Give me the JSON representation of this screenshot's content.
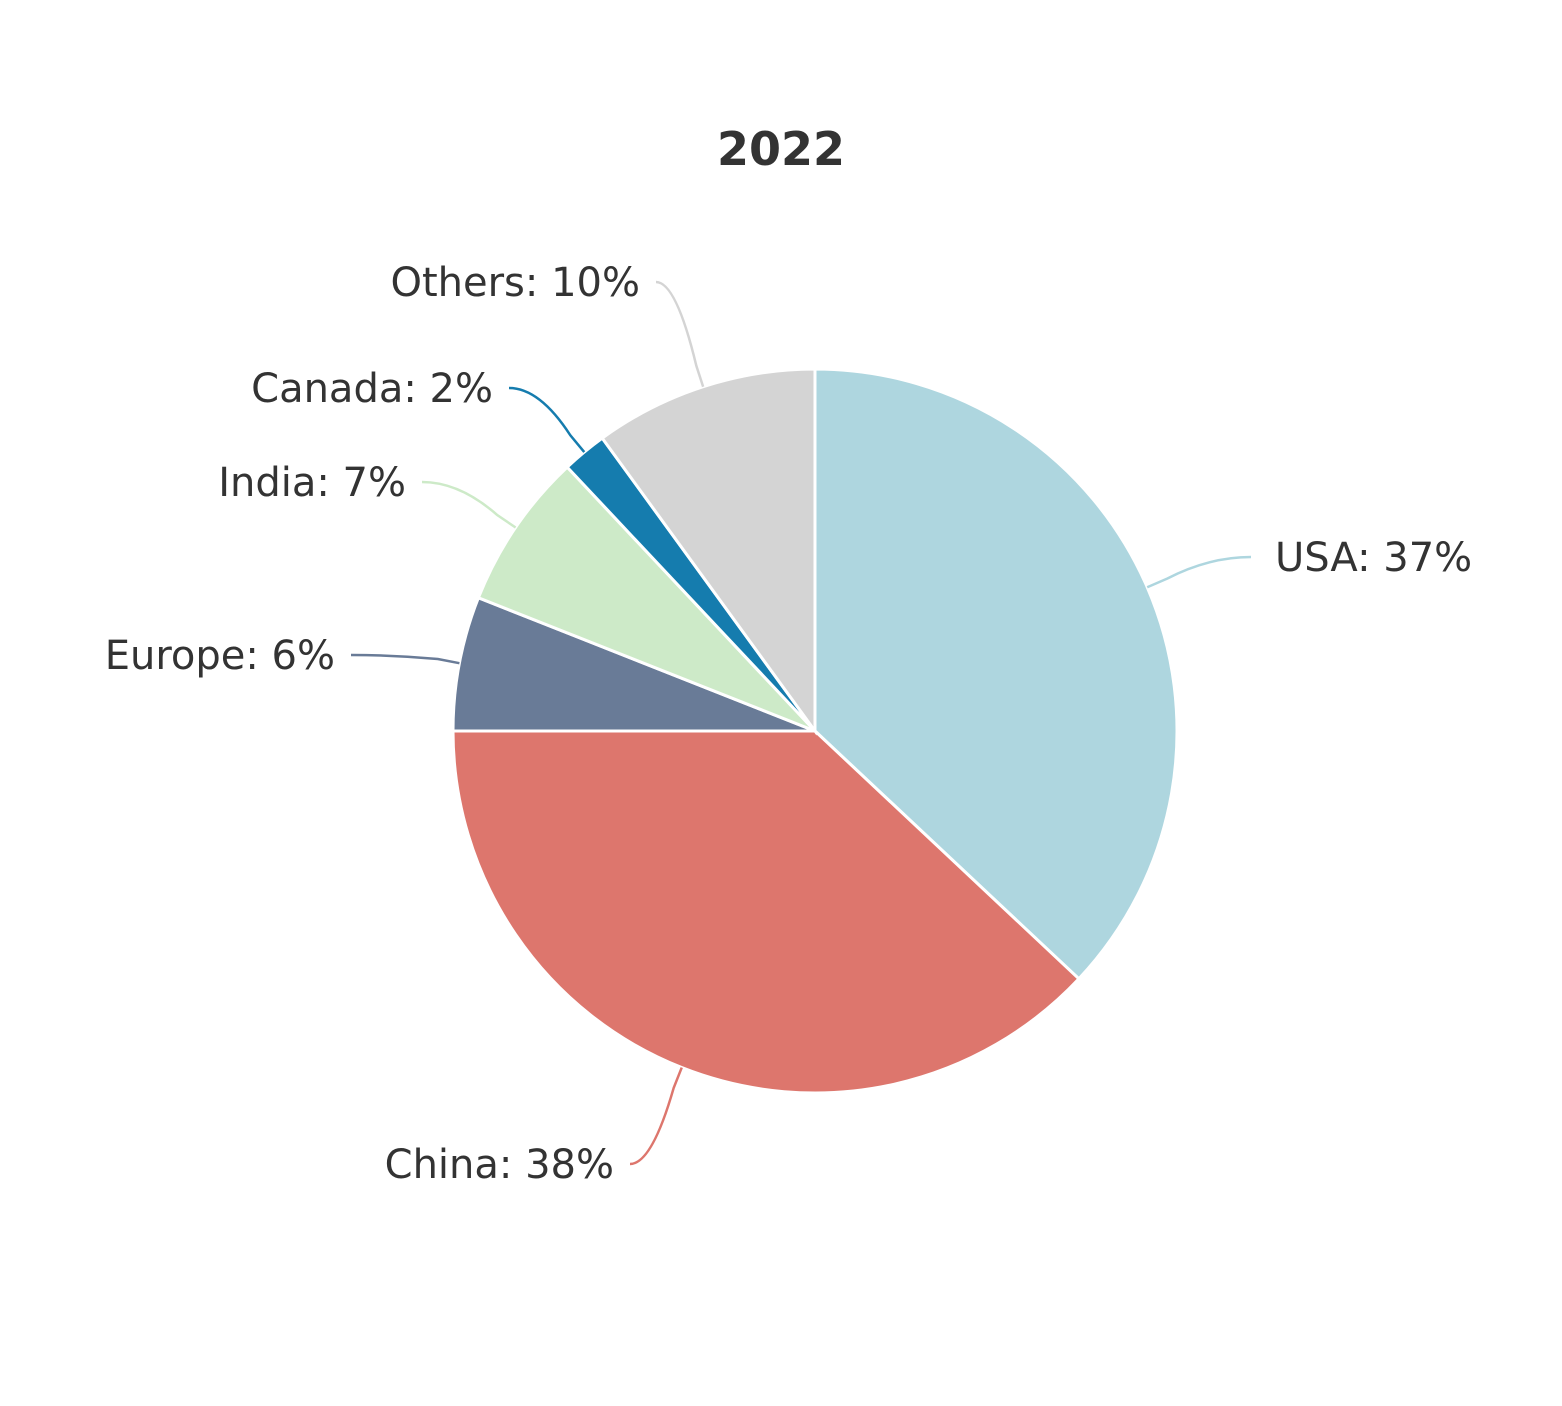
{
  "chart_data": {
    "type": "pie",
    "title": "2022",
    "slices": [
      {
        "name": "USA",
        "value": 37,
        "label": "USA: 37%",
        "color": "#aed6df"
      },
      {
        "name": "China",
        "value": 38,
        "label": "China: 38%",
        "color": "#dd766d"
      },
      {
        "name": "Europe",
        "value": 6,
        "label": "Europe: 6%",
        "color": "#697b97"
      },
      {
        "name": "India",
        "value": 7,
        "label": "India: 7%",
        "color": "#cdeac8"
      },
      {
        "name": "Canada",
        "value": 2,
        "label": "Canada: 2%",
        "color": "#157cae"
      },
      {
        "name": "Others",
        "value": 10,
        "label": "Others: 10%",
        "color": "#d4d4d4"
      }
    ]
  }
}
